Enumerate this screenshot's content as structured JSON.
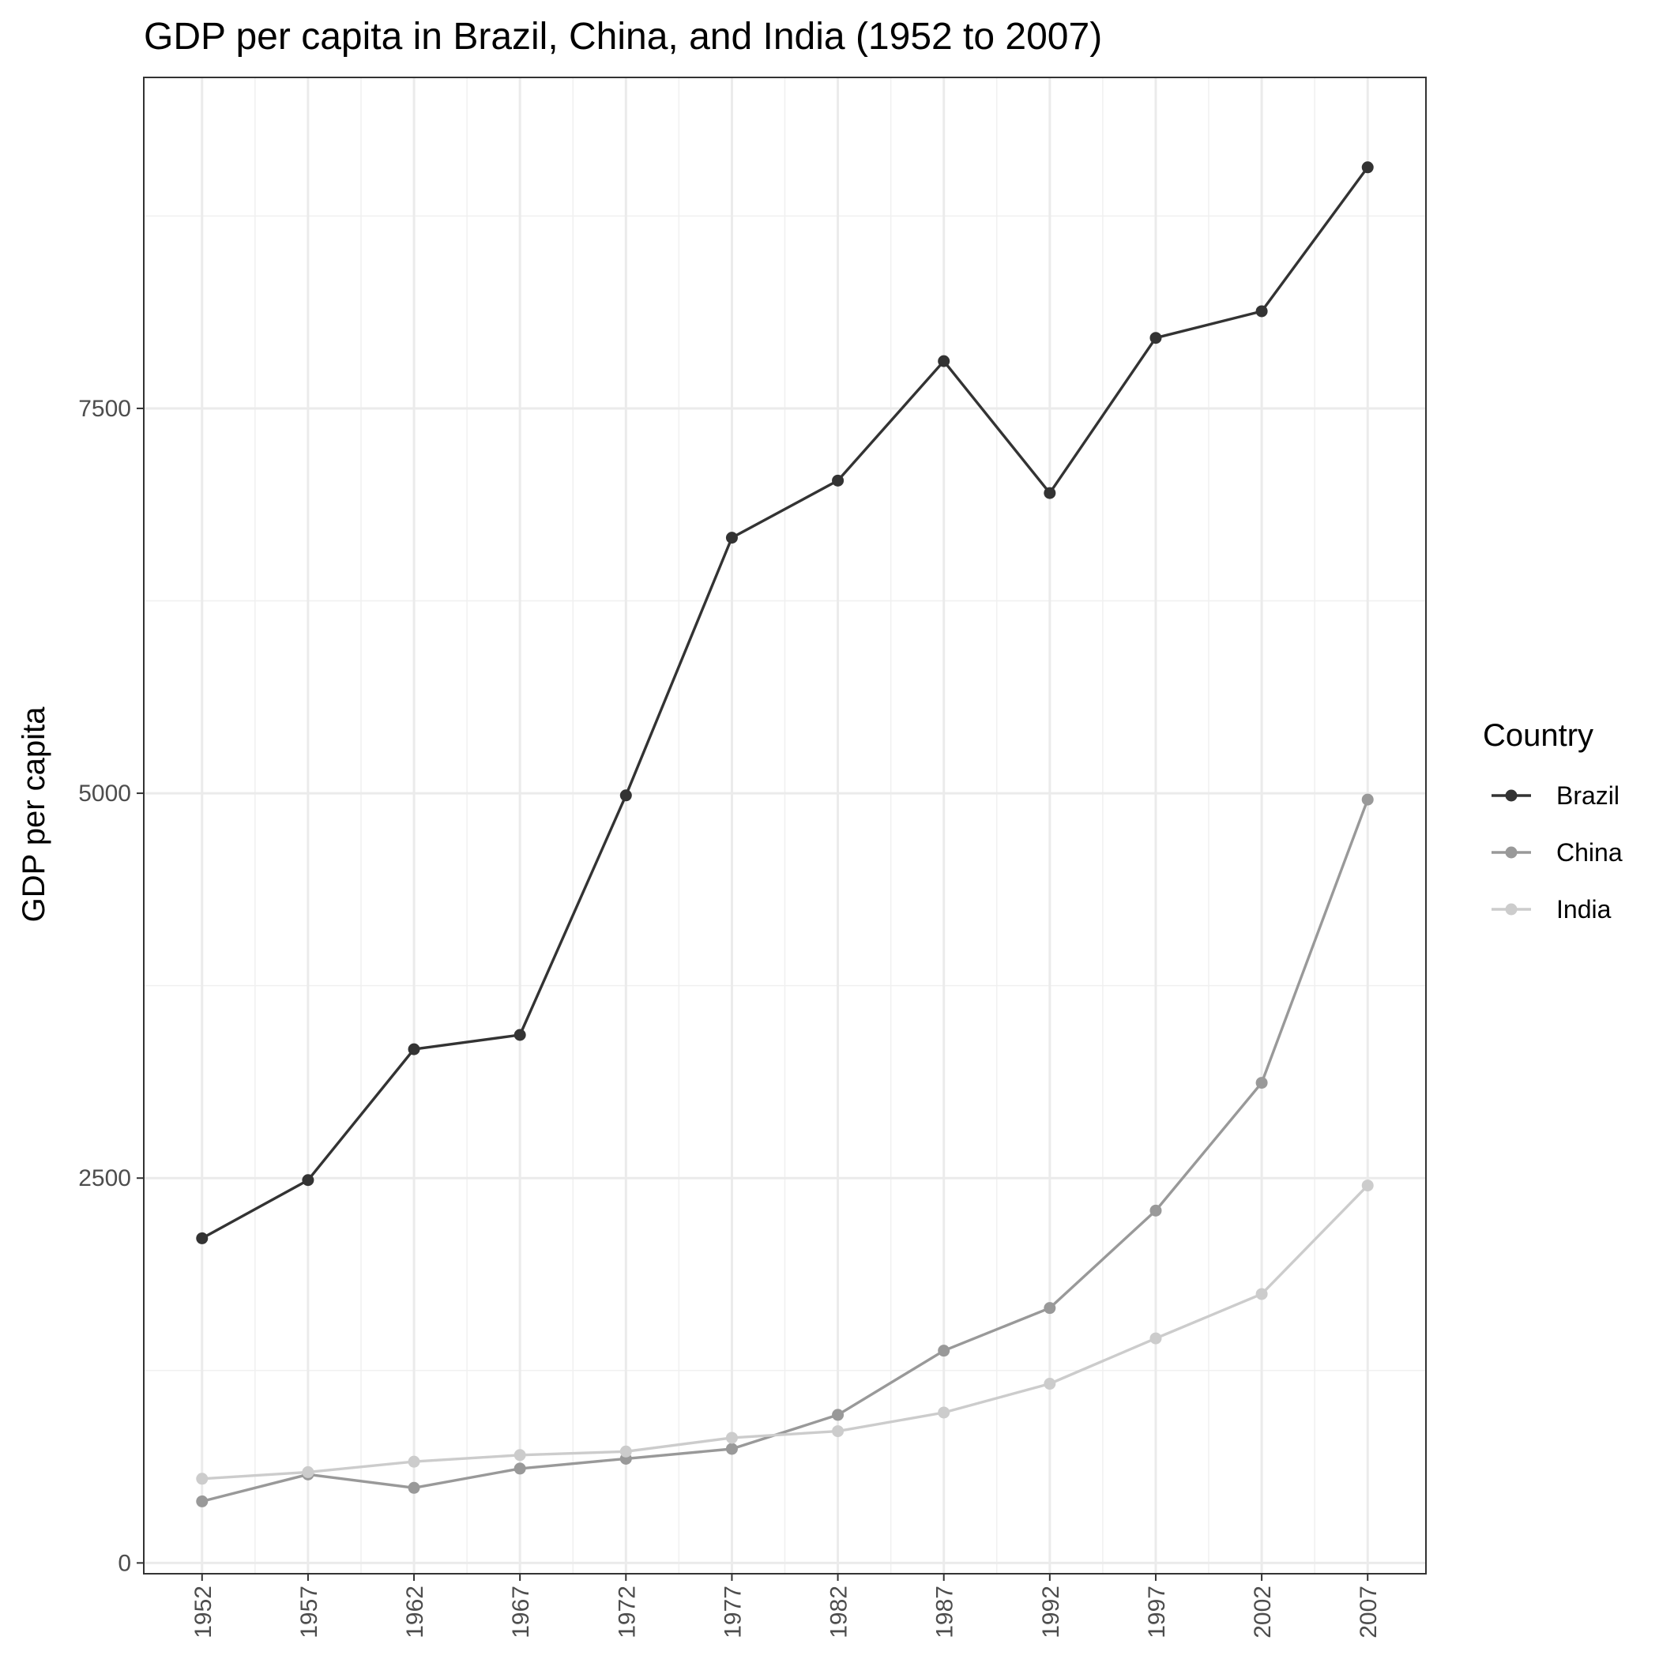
{
  "chart_data": {
    "type": "line",
    "title": "GDP per capita in Brazil, China, and India (1952 to 2007)",
    "xlabel": "",
    "ylabel": "GDP per capita",
    "x": [
      1952,
      1957,
      1962,
      1967,
      1972,
      1977,
      1982,
      1987,
      1992,
      1997,
      2002,
      2007
    ],
    "x_ticks": [
      "1952",
      "1957",
      "1962",
      "1967",
      "1972",
      "1977",
      "1982",
      "1987",
      "1992",
      "1997",
      "2002",
      "2007"
    ],
    "xlim": [
      1949.25,
      2009.75
    ],
    "ylim": [
      -70,
      9650
    ],
    "y_ticks": [
      0,
      2500,
      5000,
      7500
    ],
    "y_tick_labels": [
      "0",
      "2500",
      "5000",
      "7500"
    ],
    "grid": true,
    "legend": {
      "title": "Country",
      "position": "right"
    },
    "series": [
      {
        "name": "Brazil",
        "color": "#333333",
        "values": [
          2109,
          2487,
          3337,
          3430,
          4986,
          6660,
          7031,
          7807,
          6950,
          7958,
          8131,
          9066
        ]
      },
      {
        "name": "China",
        "color": "#999999",
        "values": [
          400,
          575,
          488,
          613,
          677,
          741,
          962,
          1379,
          1656,
          2289,
          3119,
          4959
        ]
      },
      {
        "name": "India",
        "color": "#cccccc",
        "values": [
          547,
          590,
          658,
          701,
          724,
          813,
          856,
          977,
          1164,
          1459,
          1747,
          2452
        ]
      }
    ]
  }
}
